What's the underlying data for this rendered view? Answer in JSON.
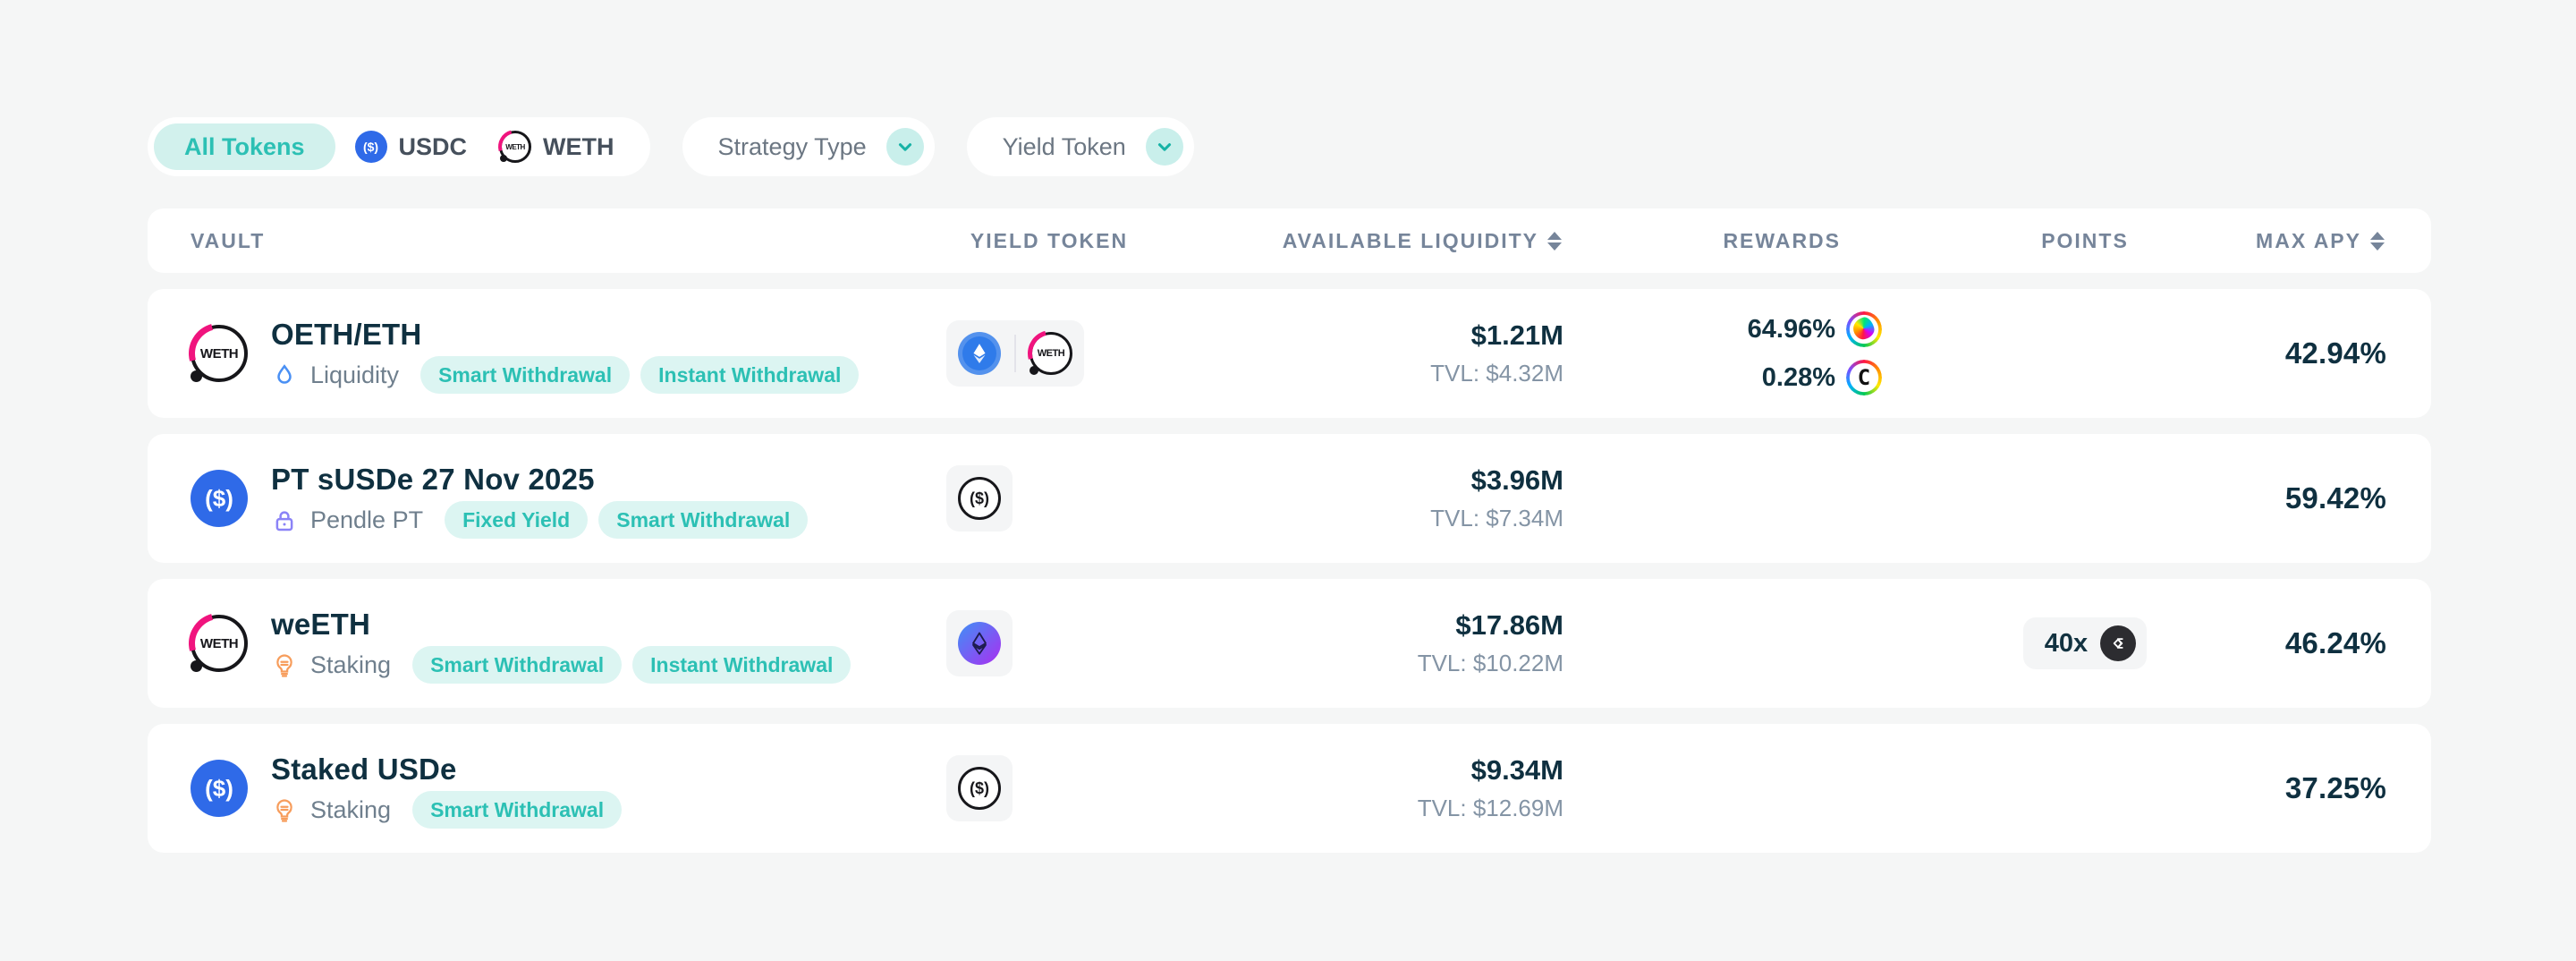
{
  "filters": {
    "token_group": {
      "all_label": "All Tokens",
      "usdc_label": "USDC",
      "usdc_icon": "usdc-token-icon",
      "weth_label": "WETH",
      "weth_icon": "weth-token-icon"
    },
    "strategy_type_label": "Strategy Type",
    "yield_token_label": "Yield Token",
    "dropdown_icon": "chevron-down"
  },
  "table": {
    "headers": {
      "vault": "VAULT",
      "yield_token": "YIELD TOKEN",
      "available_liquidity": "AVAILABLE LIQUIDITY",
      "rewards": "REWARDS",
      "points": "POINTS",
      "max_apy": "MAX APY",
      "sort_icon": "sort-arrows"
    },
    "rows": [
      {
        "title": "OETH/ETH",
        "vault_icon": "weth",
        "strategy": "Liquidity",
        "strategy_icon": "droplet",
        "tags": [
          "Smart Withdrawal",
          "Instant Withdrawal"
        ],
        "yield_icons": [
          "oeth",
          "weth"
        ],
        "liquidity": "$1.21M",
        "tvl": "TVL: $4.32M",
        "rewards": [
          {
            "value": "64.96%",
            "icon": "pendle"
          },
          {
            "value": "0.28%",
            "icon": "curve"
          }
        ],
        "points": null,
        "apy": "42.94%"
      },
      {
        "title": "PT sUSDe 27 Nov 2025",
        "vault_icon": "usdc",
        "strategy": "Pendle PT",
        "strategy_icon": "lock",
        "tags": [
          "Fixed Yield",
          "Smart Withdrawal"
        ],
        "yield_icons": [
          "usde"
        ],
        "liquidity": "$3.96M",
        "tvl": "TVL: $7.34M",
        "rewards": [],
        "points": null,
        "apy": "59.42%"
      },
      {
        "title": "weETH",
        "vault_icon": "weth",
        "strategy": "Staking",
        "strategy_icon": "bulb",
        "tags": [
          "Smart Withdrawal",
          "Instant Withdrawal"
        ],
        "yield_icons": [
          "weeth"
        ],
        "liquidity": "$17.86M",
        "tvl": "TVL: $10.22M",
        "rewards": [],
        "points": {
          "value": "40x",
          "icon": "etherfi"
        },
        "apy": "46.24%"
      },
      {
        "title": "Staked USDe",
        "vault_icon": "usdc",
        "strategy": "Staking",
        "strategy_icon": "bulb",
        "tags": [
          "Smart Withdrawal"
        ],
        "yield_icons": [
          "usde"
        ],
        "liquidity": "$9.34M",
        "tvl": "TVL: $12.69M",
        "rewards": [],
        "points": null,
        "apy": "37.25%"
      }
    ]
  },
  "colors": {
    "accent_teal": "#2cc0b4",
    "tag_bg": "#dcf5f2",
    "dark_text": "#0f3040",
    "muted_text": "#6f7f8d",
    "header_text": "#76859a",
    "page_bg": "#f5f6f6",
    "usdc_blue": "#2f6ae8",
    "weth_pink": "#f0147e",
    "etherfi_dark": "#2c2c30"
  }
}
